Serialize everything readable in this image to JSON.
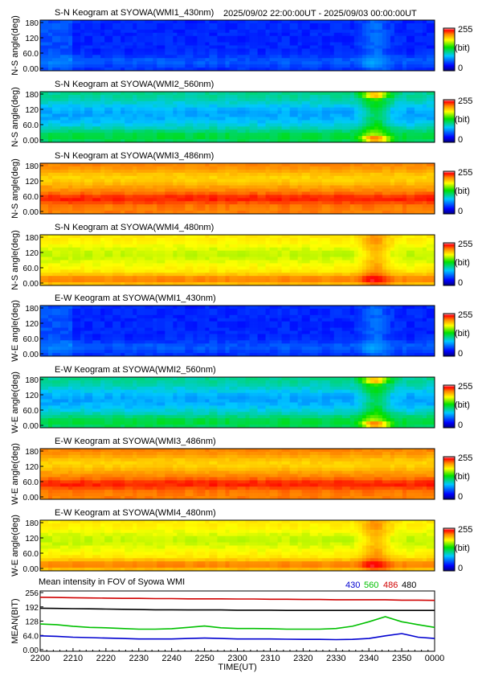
{
  "header": {
    "time_range": "2025/09/02 22:00:00UT - 2025/09/03 00:00:00UT"
  },
  "colorbar": {
    "max_label": "255",
    "min_label": "0",
    "unit_label": "(bit)"
  },
  "chart_data": [
    {
      "type": "heatmap",
      "title": "S-N Keogram at SYOWA(WMI1_430nm)",
      "ylabel": "N-S angle(deg)",
      "ylim": [
        0,
        180
      ],
      "yticks": [
        "0.00",
        "60.0",
        "120",
        "180"
      ],
      "colormap": "rainbow",
      "clim": [
        0,
        255
      ],
      "profile": "blue_weak"
    },
    {
      "type": "heatmap",
      "title": "S-N Keogram at SYOWA(WMI2_560nm)",
      "ylabel": "N-S angle(deg)",
      "ylim": [
        0,
        180
      ],
      "yticks": [
        "0.00",
        "60.0",
        "120",
        "180"
      ],
      "colormap": "rainbow",
      "clim": [
        0,
        255
      ],
      "profile": "green_mid"
    },
    {
      "type": "heatmap",
      "title": "S-N Keogram at SYOWA(WMI3_486nm)",
      "ylabel": "N-S angle(deg)",
      "ylim": [
        0,
        180
      ],
      "yticks": [
        "0.00",
        "60.0",
        "120",
        "180"
      ],
      "colormap": "rainbow",
      "clim": [
        0,
        255
      ],
      "profile": "hot"
    },
    {
      "type": "heatmap",
      "title": "S-N Keogram at SYOWA(WMI4_480nm)",
      "ylabel": "N-S angle(deg)",
      "ylim": [
        0,
        180
      ],
      "yticks": [
        "0.00",
        "60.0",
        "120",
        "180"
      ],
      "colormap": "rainbow",
      "clim": [
        0,
        255
      ],
      "profile": "warm"
    },
    {
      "type": "heatmap",
      "title": "E-W Keogram at SYOWA(WMI1_430nm)",
      "ylabel": "W-E angle(deg)",
      "ylim": [
        0,
        180
      ],
      "yticks": [
        "0.00",
        "60.0",
        "120",
        "180"
      ],
      "colormap": "rainbow",
      "clim": [
        0,
        255
      ],
      "profile": "blue_weak"
    },
    {
      "type": "heatmap",
      "title": "E-W Keogram at SYOWA(WMI2_560nm)",
      "ylabel": "W-E angle(deg)",
      "ylim": [
        0,
        180
      ],
      "yticks": [
        "0.00",
        "60.0",
        "120",
        "180"
      ],
      "colormap": "rainbow",
      "clim": [
        0,
        255
      ],
      "profile": "green_mid"
    },
    {
      "type": "heatmap",
      "title": "E-W Keogram at SYOWA(WMI3_486nm)",
      "ylabel": "W-E angle(deg)",
      "ylim": [
        0,
        180
      ],
      "yticks": [
        "0.00",
        "60.0",
        "120",
        "180"
      ],
      "colormap": "rainbow",
      "clim": [
        0,
        255
      ],
      "profile": "hot"
    },
    {
      "type": "heatmap",
      "title": "E-W Keogram at SYOWA(WMI4_480nm)",
      "ylabel": "W-E angle(deg)",
      "ylim": [
        0,
        180
      ],
      "yticks": [
        "0.00",
        "60.0",
        "120",
        "180"
      ],
      "colormap": "rainbow",
      "clim": [
        0,
        255
      ],
      "profile": "warm"
    },
    {
      "type": "line",
      "title": "Mean intensity in FOV of Syowa WMI",
      "ylabel": "MEAN(BIT)",
      "xlabel": "TIME(UT)",
      "ylim": [
        0,
        256
      ],
      "yticks": [
        "0.00",
        "64.0",
        "128",
        "192",
        "256"
      ],
      "x": [
        0,
        5,
        10,
        15,
        20,
        25,
        30,
        35,
        40,
        45,
        50,
        55,
        60,
        65,
        70,
        75,
        80,
        85,
        90,
        95,
        100,
        105,
        110,
        115,
        120
      ],
      "xticks": [
        "2200",
        "2210",
        "2220",
        "2230",
        "2240",
        "2250",
        "2300",
        "2310",
        "2320",
        "2330",
        "2340",
        "2350",
        "0000"
      ],
      "series": [
        {
          "name": "430",
          "color": "#0000d0",
          "values": [
            62,
            60,
            56,
            54,
            52,
            50,
            48,
            48,
            48,
            50,
            52,
            50,
            48,
            48,
            48,
            47,
            46,
            46,
            45,
            46,
            50,
            62,
            72,
            56,
            50
          ]
        },
        {
          "name": "560",
          "color": "#00c000",
          "values": [
            115,
            112,
            105,
            100,
            98,
            95,
            92,
            92,
            94,
            100,
            106,
            98,
            95,
            95,
            94,
            92,
            92,
            92,
            95,
            105,
            125,
            148,
            125,
            112,
            100
          ]
        },
        {
          "name": "486",
          "color": "#d00000",
          "values": [
            235,
            234,
            233,
            232,
            231,
            230,
            230,
            229,
            229,
            228,
            228,
            228,
            227,
            227,
            226,
            226,
            225,
            225,
            224,
            224,
            224,
            224,
            222,
            222,
            221
          ]
        },
        {
          "name": "480",
          "color": "#000000",
          "values": [
            186,
            185,
            184,
            183,
            182,
            181,
            180,
            179,
            179,
            178,
            178,
            178,
            177,
            177,
            177,
            176,
            176,
            176,
            176,
            176,
            176,
            176,
            176,
            176,
            176
          ]
        }
      ]
    }
  ]
}
